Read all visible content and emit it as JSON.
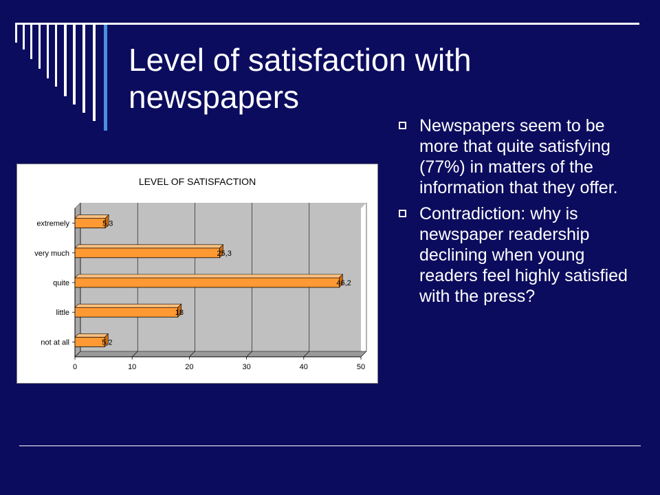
{
  "slide": {
    "title": "Level of satisfaction with newspapers",
    "bullets": [
      "Newspapers seem to be more that quite satisfying (77%) in matters of the information that they offer.",
      "Contradiction: why is newspaper readership declining when young readers feel highly satisfied with the press?"
    ]
  },
  "colors": {
    "background": "#0c0c5e",
    "bar": "#ff9933",
    "plot_area": "#c0c0c0"
  },
  "chart_data": {
    "type": "bar",
    "orientation": "horizontal",
    "title": "LEVEL OF SATISFACTION",
    "categories": [
      "extremely",
      "very much",
      "quite",
      "little",
      "not at all"
    ],
    "values": [
      5.3,
      25.3,
      46.2,
      18,
      5.2
    ],
    "data_labels": [
      "5,3",
      "25,3",
      "46,2",
      "18",
      "5,2"
    ],
    "xlim": [
      0,
      50
    ],
    "x_ticks": [
      "0",
      "10",
      "20",
      "30",
      "40",
      "50"
    ],
    "grid": true,
    "legend": "none"
  }
}
